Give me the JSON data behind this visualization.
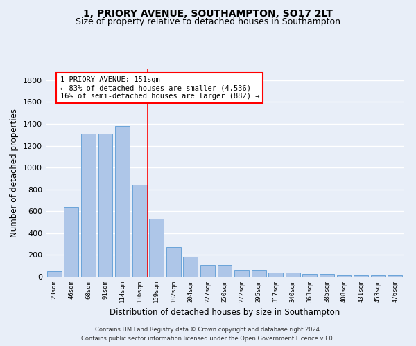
{
  "title": "1, PRIORY AVENUE, SOUTHAMPTON, SO17 2LT",
  "subtitle": "Size of property relative to detached houses in Southampton",
  "xlabel": "Distribution of detached houses by size in Southampton",
  "ylabel": "Number of detached properties",
  "categories": [
    "23sqm",
    "46sqm",
    "68sqm",
    "91sqm",
    "114sqm",
    "136sqm",
    "159sqm",
    "182sqm",
    "204sqm",
    "227sqm",
    "250sqm",
    "272sqm",
    "295sqm",
    "317sqm",
    "340sqm",
    "363sqm",
    "385sqm",
    "408sqm",
    "431sqm",
    "453sqm",
    "476sqm"
  ],
  "values": [
    50,
    640,
    1310,
    1310,
    1380,
    845,
    530,
    275,
    185,
    105,
    105,
    65,
    65,
    40,
    40,
    28,
    28,
    15,
    15,
    15,
    15
  ],
  "bar_color": "#aec6e8",
  "bar_edge_color": "#5b9bd5",
  "vline_x": 5.5,
  "vline_color": "red",
  "annotation_text": "1 PRIORY AVENUE: 151sqm\n← 83% of detached houses are smaller (4,536)\n16% of semi-detached houses are larger (882) →",
  "annotation_box_color": "white",
  "annotation_box_edge_color": "red",
  "ylim": [
    0,
    1900
  ],
  "yticks": [
    0,
    200,
    400,
    600,
    800,
    1000,
    1200,
    1400,
    1600,
    1800
  ],
  "background_color": "#e8eef8",
  "grid_color": "white",
  "footer_line1": "Contains HM Land Registry data © Crown copyright and database right 2024.",
  "footer_line2": "Contains public sector information licensed under the Open Government Licence v3.0.",
  "title_fontsize": 10,
  "subtitle_fontsize": 9,
  "xlabel_fontsize": 8.5,
  "ylabel_fontsize": 8.5,
  "annot_fontsize": 7.5,
  "footer_fontsize": 6
}
